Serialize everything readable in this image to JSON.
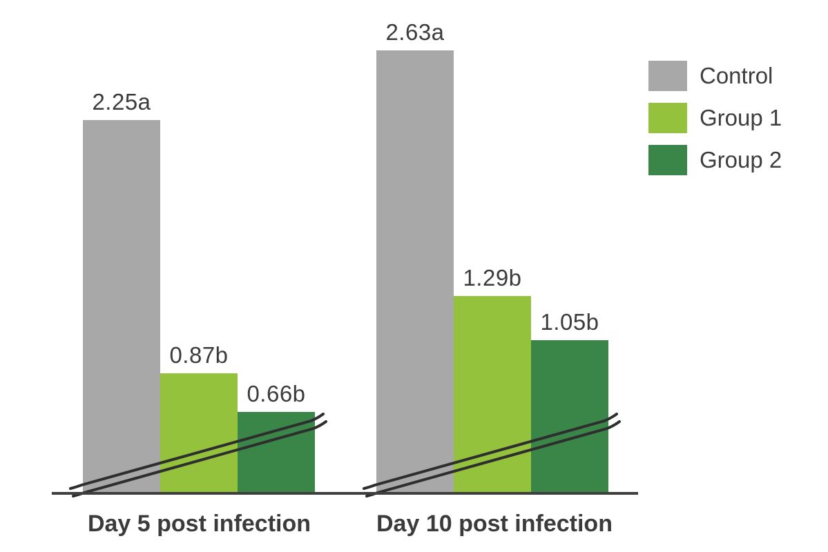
{
  "chart_data": {
    "type": "bar",
    "title": "",
    "xlabel": "",
    "ylabel": "",
    "categories": [
      "Day 5 post infection",
      "Day 10 post infection"
    ],
    "series": [
      {
        "name": "Control",
        "color": "#A8A8A8",
        "values": [
          2.25,
          2.63
        ],
        "labels": [
          "2.25a",
          "2.63a"
        ]
      },
      {
        "name": "Group 1",
        "color": "#94C23D",
        "values": [
          0.87,
          1.29
        ],
        "labels": [
          "0.87b",
          "1.29b"
        ]
      },
      {
        "name": "Group 2",
        "color": "#3A8648",
        "values": [
          0.66,
          1.05
        ],
        "labels": [
          "0.66b",
          "1.05b"
        ]
      }
    ],
    "legend_position": "top-right",
    "grid": false,
    "y_axis_visible": false,
    "axis_break": true,
    "value_labels_shown": true
  },
  "colors": {
    "background": "#ffffff",
    "axis": "#3f3f3f",
    "break_marks": "#2e2e2e",
    "text": "#3b3b3b"
  }
}
